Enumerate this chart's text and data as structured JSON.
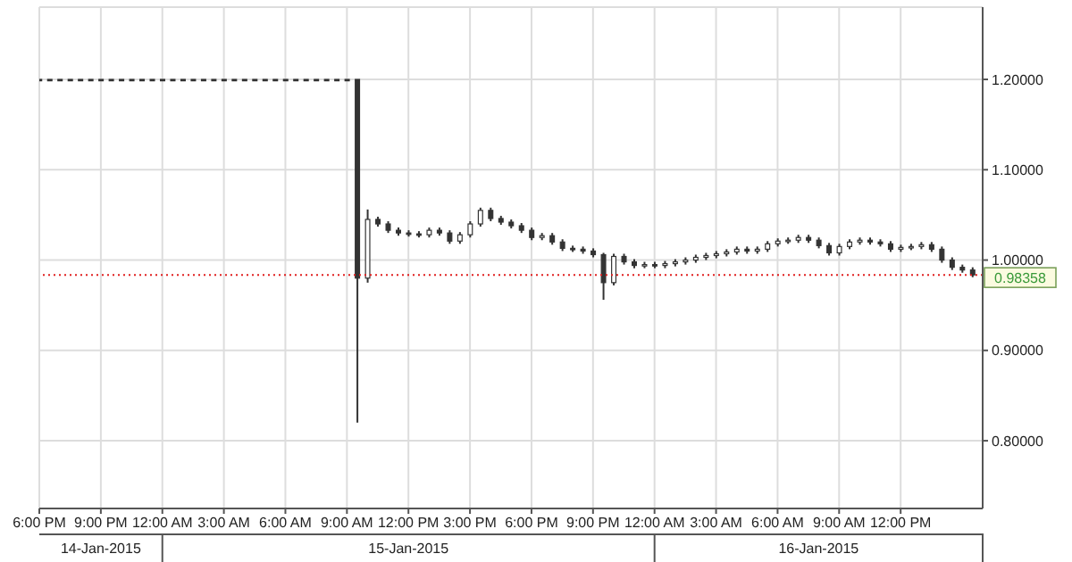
{
  "chart_data": {
    "type": "candlestick",
    "color": "#333333",
    "x": [
      "2015-01-14T18:00",
      "2015-01-14T18:30",
      "2015-01-14T19:00",
      "2015-01-14T19:30",
      "2015-01-14T20:00",
      "2015-01-14T20:30",
      "2015-01-14T21:00",
      "2015-01-14T21:30",
      "2015-01-14T22:00",
      "2015-01-14T22:30",
      "2015-01-14T23:00",
      "2015-01-14T23:30",
      "2015-01-15T00:00",
      "2015-01-15T00:30",
      "2015-01-15T01:00",
      "2015-01-15T01:30",
      "2015-01-15T02:00",
      "2015-01-15T02:30",
      "2015-01-15T03:00",
      "2015-01-15T03:30",
      "2015-01-15T04:00",
      "2015-01-15T04:30",
      "2015-01-15T05:00",
      "2015-01-15T05:30",
      "2015-01-15T06:00",
      "2015-01-15T06:30",
      "2015-01-15T07:00",
      "2015-01-15T07:30",
      "2015-01-15T08:00",
      "2015-01-15T08:30",
      "2015-01-15T09:00",
      "2015-01-15T09:30",
      "2015-01-15T10:00",
      "2015-01-15T10:30",
      "2015-01-15T11:00",
      "2015-01-15T11:30",
      "2015-01-15T12:00",
      "2015-01-15T12:30",
      "2015-01-15T13:00",
      "2015-01-15T13:30",
      "2015-01-15T14:00",
      "2015-01-15T14:30",
      "2015-01-15T15:00",
      "2015-01-15T15:30",
      "2015-01-15T16:00",
      "2015-01-15T16:30",
      "2015-01-15T17:00",
      "2015-01-15T17:30",
      "2015-01-15T18:00",
      "2015-01-15T18:30",
      "2015-01-15T19:00",
      "2015-01-15T19:30",
      "2015-01-15T20:00",
      "2015-01-15T20:30",
      "2015-01-15T21:00",
      "2015-01-15T21:30",
      "2015-01-15T22:00",
      "2015-01-15T22:30",
      "2015-01-15T23:00",
      "2015-01-15T23:30",
      "2015-01-16T00:00",
      "2015-01-16T00:30",
      "2015-01-16T01:00",
      "2015-01-16T01:30",
      "2015-01-16T02:00",
      "2015-01-16T02:30",
      "2015-01-16T03:00",
      "2015-01-16T03:30",
      "2015-01-16T04:00",
      "2015-01-16T04:30",
      "2015-01-16T05:00",
      "2015-01-16T05:30",
      "2015-01-16T06:00",
      "2015-01-16T06:30",
      "2015-01-16T07:00",
      "2015-01-16T07:30",
      "2015-01-16T08:00",
      "2015-01-16T08:30",
      "2015-01-16T09:00",
      "2015-01-16T09:30",
      "2015-01-16T10:00",
      "2015-01-16T10:30",
      "2015-01-16T11:00",
      "2015-01-16T11:30",
      "2015-01-16T12:00",
      "2015-01-16T12:30",
      "2015-01-16T13:00",
      "2015-01-16T13:30",
      "2015-01-16T14:00",
      "2015-01-16T14:30",
      "2015-01-16T15:00",
      "2015-01-16T15:30"
    ],
    "ohlc": [
      [
        1.2,
        1.2,
        1.2,
        1.2
      ],
      [
        1.2,
        1.2,
        1.2,
        1.2
      ],
      [
        1.2,
        1.2,
        1.2,
        1.2
      ],
      [
        1.2,
        1.2,
        1.2,
        1.2
      ],
      [
        1.2,
        1.2,
        1.2,
        1.2
      ],
      [
        1.2,
        1.2,
        1.2,
        1.2
      ],
      [
        1.2,
        1.2,
        1.2,
        1.2
      ],
      [
        1.2,
        1.2,
        1.2,
        1.2
      ],
      [
        1.2,
        1.2,
        1.2,
        1.2
      ],
      [
        1.2,
        1.2,
        1.2,
        1.2
      ],
      [
        1.2,
        1.2,
        1.2,
        1.2
      ],
      [
        1.2,
        1.2,
        1.2,
        1.2
      ],
      [
        1.2,
        1.2,
        1.2,
        1.2
      ],
      [
        1.2,
        1.2,
        1.2,
        1.2
      ],
      [
        1.2,
        1.2,
        1.2,
        1.2
      ],
      [
        1.2,
        1.2,
        1.2,
        1.2
      ],
      [
        1.2,
        1.2,
        1.2,
        1.2
      ],
      [
        1.2,
        1.2,
        1.2,
        1.2
      ],
      [
        1.2,
        1.2,
        1.2,
        1.2
      ],
      [
        1.2,
        1.2,
        1.2,
        1.2
      ],
      [
        1.2,
        1.2,
        1.2,
        1.2
      ],
      [
        1.2,
        1.2,
        1.2,
        1.2
      ],
      [
        1.2,
        1.2,
        1.2,
        1.2
      ],
      [
        1.2,
        1.2,
        1.2,
        1.2
      ],
      [
        1.2,
        1.2,
        1.2,
        1.2
      ],
      [
        1.2,
        1.2,
        1.2,
        1.2
      ],
      [
        1.2,
        1.2,
        1.2,
        1.2
      ],
      [
        1.2,
        1.2,
        1.2,
        1.2
      ],
      [
        1.2,
        1.2,
        1.2,
        1.2
      ],
      [
        1.2,
        1.2,
        1.2,
        1.2
      ],
      [
        1.2,
        1.2,
        1.2,
        1.2
      ],
      [
        1.2,
        1.2,
        0.82,
        0.98
      ],
      [
        0.98,
        1.056,
        0.975,
        1.045
      ],
      [
        1.045,
        1.048,
        1.037,
        1.04
      ],
      [
        1.04,
        1.043,
        1.03,
        1.033
      ],
      [
        1.033,
        1.036,
        1.027,
        1.03
      ],
      [
        1.03,
        1.033,
        1.026,
        1.029
      ],
      [
        1.029,
        1.032,
        1.025,
        1.028
      ],
      [
        1.028,
        1.036,
        1.025,
        1.033
      ],
      [
        1.033,
        1.036,
        1.027,
        1.03
      ],
      [
        1.03,
        1.033,
        1.018,
        1.021
      ],
      [
        1.021,
        1.031,
        1.018,
        1.028
      ],
      [
        1.028,
        1.043,
        1.025,
        1.04
      ],
      [
        1.04,
        1.058,
        1.037,
        1.055
      ],
      [
        1.055,
        1.058,
        1.043,
        1.046
      ],
      [
        1.046,
        1.049,
        1.039,
        1.042
      ],
      [
        1.042,
        1.045,
        1.035,
        1.038
      ],
      [
        1.038,
        1.041,
        1.03,
        1.033
      ],
      [
        1.033,
        1.036,
        1.022,
        1.025
      ],
      [
        1.025,
        1.03,
        1.022,
        1.027
      ],
      [
        1.027,
        1.03,
        1.017,
        1.02
      ],
      [
        1.02,
        1.023,
        1.01,
        1.013
      ],
      [
        1.013,
        1.016,
        1.009,
        1.012
      ],
      [
        1.012,
        1.015,
        1.007,
        1.01
      ],
      [
        1.01,
        1.013,
        1.003,
        1.006
      ],
      [
        1.006,
        1.008,
        0.956,
        0.975
      ],
      [
        0.975,
        1.007,
        0.972,
        1.004
      ],
      [
        1.004,
        1.007,
        0.995,
        0.998
      ],
      [
        0.998,
        1.001,
        0.991,
        0.994
      ],
      [
        0.994,
        0.998,
        0.991,
        0.995
      ],
      [
        0.995,
        0.998,
        0.991,
        0.994
      ],
      [
        0.994,
        0.999,
        0.991,
        0.996
      ],
      [
        0.996,
        1.001,
        0.993,
        0.998
      ],
      [
        0.998,
        1.003,
        0.995,
        1.0
      ],
      [
        1.0,
        1.006,
        0.997,
        1.003
      ],
      [
        1.003,
        1.008,
        1.0,
        1.005
      ],
      [
        1.005,
        1.01,
        1.002,
        1.007
      ],
      [
        1.007,
        1.012,
        1.004,
        1.009
      ],
      [
        1.009,
        1.015,
        1.006,
        1.012
      ],
      [
        1.012,
        1.015,
        1.007,
        1.01
      ],
      [
        1.01,
        1.015,
        1.007,
        1.012
      ],
      [
        1.012,
        1.021,
        1.009,
        1.018
      ],
      [
        1.018,
        1.024,
        1.015,
        1.021
      ],
      [
        1.021,
        1.025,
        1.018,
        1.022
      ],
      [
        1.022,
        1.028,
        1.019,
        1.025
      ],
      [
        1.025,
        1.028,
        1.019,
        1.022
      ],
      [
        1.022,
        1.025,
        1.013,
        1.016
      ],
      [
        1.016,
        1.019,
        1.005,
        1.008
      ],
      [
        1.008,
        1.018,
        1.005,
        1.015
      ],
      [
        1.015,
        1.023,
        1.012,
        1.02
      ],
      [
        1.02,
        1.025,
        1.017,
        1.022
      ],
      [
        1.022,
        1.025,
        1.017,
        1.02
      ],
      [
        1.02,
        1.023,
        1.015,
        1.018
      ],
      [
        1.018,
        1.021,
        1.009,
        1.012
      ],
      [
        1.012,
        1.017,
        1.009,
        1.014
      ],
      [
        1.014,
        1.018,
        1.011,
        1.015
      ],
      [
        1.015,
        1.02,
        1.012,
        1.017
      ],
      [
        1.017,
        1.02,
        1.009,
        1.012
      ],
      [
        1.012,
        1.015,
        0.997,
        1.0
      ],
      [
        1.0,
        1.003,
        0.989,
        0.992
      ],
      [
        0.992,
        0.995,
        0.986,
        0.989
      ],
      [
        0.989,
        0.992,
        0.981,
        0.98358
      ]
    ],
    "xlim": [
      "2015-01-14T18:00",
      "2015-01-16T16:00"
    ],
    "xticks": [
      {
        "value": "2015-01-14T18:00",
        "label": "6:00 PM"
      },
      {
        "value": "2015-01-14T21:00",
        "label": "9:00 PM"
      },
      {
        "value": "2015-01-15T00:00",
        "label": "12:00 AM"
      },
      {
        "value": "2015-01-15T03:00",
        "label": "3:00 AM"
      },
      {
        "value": "2015-01-15T06:00",
        "label": "6:00 AM"
      },
      {
        "value": "2015-01-15T09:00",
        "label": "9:00 AM"
      },
      {
        "value": "2015-01-15T12:00",
        "label": "12:00 PM"
      },
      {
        "value": "2015-01-15T15:00",
        "label": "3:00 PM"
      },
      {
        "value": "2015-01-15T18:00",
        "label": "6:00 PM"
      },
      {
        "value": "2015-01-15T21:00",
        "label": "9:00 PM"
      },
      {
        "value": "2015-01-16T00:00",
        "label": "12:00 AM"
      },
      {
        "value": "2015-01-16T03:00",
        "label": "3:00 AM"
      },
      {
        "value": "2015-01-16T06:00",
        "label": "6:00 AM"
      },
      {
        "value": "2015-01-16T09:00",
        "label": "9:00 AM"
      },
      {
        "value": "2015-01-16T12:00",
        "label": "12:00 PM"
      }
    ],
    "ylim": [
      0.725,
      1.28
    ],
    "yticks": [
      {
        "value": 0.8,
        "label": "0.80000"
      },
      {
        "value": 0.9,
        "label": "0.90000"
      },
      {
        "value": 1.0,
        "label": "1.00000"
      },
      {
        "value": 1.1,
        "label": "1.10000"
      },
      {
        "value": 1.2,
        "label": "1.20000"
      }
    ],
    "ref_lines": [
      {
        "axis": "y",
        "value": 0.98358,
        "label": "0.98358",
        "color": "#e02020",
        "line_style": "dotted"
      }
    ],
    "annotations": [
      "14-Jan-2015",
      "15-Jan-2015",
      "16-Jan-2015"
    ],
    "grid": true
  }
}
